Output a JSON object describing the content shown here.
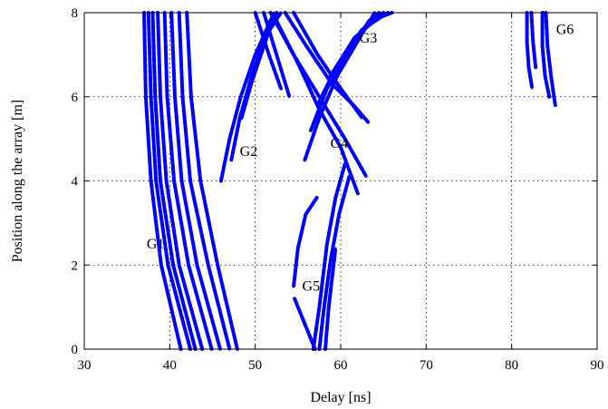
{
  "chart_data": {
    "type": "scatter",
    "title": "",
    "xlabel": "Delay [ns]",
    "ylabel": "Position along the array [m]",
    "xlim": [
      30,
      90
    ],
    "ylim": [
      0,
      8
    ],
    "xticks": [
      30,
      40,
      50,
      60,
      70,
      80,
      90
    ],
    "yticks": [
      0,
      2,
      4,
      6,
      8
    ],
    "grid": true,
    "color": "#0000ff",
    "groups": [
      {
        "name": "G1",
        "label_pos": [
          37.3,
          2.5
        ],
        "traces": [
          [
            [
              37.0,
              8.0
            ],
            [
              37.2,
              6.0
            ],
            [
              37.8,
              4.0
            ],
            [
              39.0,
              2.0
            ],
            [
              41.3,
              0.0
            ]
          ],
          [
            [
              37.5,
              8.0
            ],
            [
              37.8,
              6.0
            ],
            [
              38.4,
              4.0
            ],
            [
              39.8,
              2.0
            ],
            [
              42.4,
              0.0
            ]
          ],
          [
            [
              38.0,
              8.0
            ],
            [
              38.3,
              6.0
            ],
            [
              38.9,
              4.0
            ],
            [
              40.4,
              2.0
            ],
            [
              43.0,
              0.0
            ]
          ],
          [
            [
              38.6,
              8.0
            ],
            [
              38.9,
              6.0
            ],
            [
              39.6,
              4.0
            ],
            [
              41.1,
              2.0
            ],
            [
              43.8,
              0.0
            ]
          ],
          [
            [
              39.4,
              8.0
            ],
            [
              39.7,
              6.0
            ],
            [
              40.5,
              4.0
            ],
            [
              42.2,
              2.0
            ],
            [
              44.9,
              0.0
            ]
          ],
          [
            [
              40.2,
              8.0
            ],
            [
              40.6,
              6.0
            ],
            [
              41.4,
              4.0
            ],
            [
              43.2,
              2.0
            ],
            [
              45.9,
              0.0
            ]
          ],
          [
            [
              41.1,
              8.0
            ],
            [
              41.5,
              6.0
            ],
            [
              42.4,
              4.0
            ],
            [
              44.5,
              2.0
            ],
            [
              47.0,
              0.0
            ]
          ],
          [
            [
              42.0,
              8.0
            ],
            [
              42.5,
              6.0
            ],
            [
              43.6,
              4.0
            ],
            [
              45.6,
              2.0
            ],
            [
              47.9,
              0.0
            ]
          ]
        ]
      },
      {
        "name": "G2",
        "label_pos": [
          48.2,
          4.7
        ],
        "traces": [
          [
            [
              46.0,
              4.0
            ],
            [
              47.0,
              5.0
            ],
            [
              48.3,
              6.0
            ],
            [
              50.0,
              7.0
            ],
            [
              52.2,
              8.0
            ]
          ],
          [
            [
              47.2,
              4.5
            ],
            [
              48.2,
              5.5
            ],
            [
              49.6,
              6.5
            ],
            [
              51.3,
              7.5
            ],
            [
              52.5,
              8.0
            ]
          ],
          [
            [
              48.4,
              5.5
            ],
            [
              49.8,
              6.5
            ],
            [
              51.4,
              7.5
            ],
            [
              53.0,
              8.0
            ]
          ],
          [
            [
              49.5,
              6.3
            ],
            [
              51.0,
              7.2
            ],
            [
              52.0,
              7.8
            ]
          ],
          [
            [
              50.0,
              8.0
            ],
            [
              51.6,
              7.0
            ],
            [
              53.0,
              6.2
            ]
          ],
          [
            [
              51.0,
              8.0
            ],
            [
              52.2,
              7.2
            ],
            [
              54.0,
              6.0
            ]
          ]
        ]
      },
      {
        "name": "G3",
        "label_pos": [
          62.2,
          7.4
        ],
        "traces": [
          [
            [
              55.8,
              4.5
            ],
            [
              57.5,
              5.5
            ],
            [
              59.6,
              6.5
            ],
            [
              62.5,
              7.5
            ],
            [
              64.0,
              8.0
            ]
          ],
          [
            [
              56.5,
              5.2
            ],
            [
              58.4,
              6.2
            ],
            [
              60.8,
              7.0
            ],
            [
              63.3,
              7.8
            ],
            [
              64.5,
              8.0
            ]
          ],
          [
            [
              57.3,
              5.8
            ],
            [
              59.2,
              6.6
            ],
            [
              61.6,
              7.4
            ],
            [
              65.0,
              8.0
            ]
          ],
          [
            [
              58.0,
              6.1
            ],
            [
              60.1,
              6.9
            ],
            [
              62.5,
              7.6
            ],
            [
              65.5,
              8.0
            ]
          ],
          [
            [
              58.8,
              6.5
            ],
            [
              61.0,
              7.2
            ],
            [
              63.4,
              7.8
            ],
            [
              66.0,
              8.0
            ]
          ]
        ]
      },
      {
        "name": "G4",
        "label_pos": [
          58.8,
          4.9
        ],
        "traces": [
          [
            [
              51.8,
              8.0
            ],
            [
              54.5,
              7.0
            ],
            [
              57.5,
              6.0
            ],
            [
              60.5,
              5.0
            ],
            [
              63.0,
              4.1
            ]
          ],
          [
            [
              52.5,
              7.8
            ],
            [
              55.0,
              6.8
            ],
            [
              57.5,
              5.7
            ],
            [
              60.0,
              4.8
            ],
            [
              62.0,
              3.7
            ]
          ],
          [
            [
              53.5,
              8.0
            ],
            [
              56.0,
              7.2
            ],
            [
              59.0,
              6.3
            ],
            [
              61.5,
              5.8
            ],
            [
              63.2,
              5.4
            ]
          ],
          [
            [
              54.5,
              8.0
            ],
            [
              57.3,
              7.0
            ],
            [
              60.0,
              6.2
            ],
            [
              62.5,
              5.5
            ]
          ]
        ]
      },
      {
        "name": "G5",
        "label_pos": [
          55.5,
          1.5
        ],
        "traces": [
          [
            [
              54.5,
              1.5
            ],
            [
              55.0,
              2.4
            ],
            [
              55.9,
              3.2
            ],
            [
              57.2,
              3.6
            ]
          ],
          [
            [
              54.6,
              1.2
            ],
            [
              55.8,
              0.6
            ],
            [
              57.0,
              0.0
            ]
          ],
          [
            [
              56.8,
              0.0
            ],
            [
              57.5,
              1.0
            ],
            [
              58.4,
              2.5
            ],
            [
              59.4,
              3.6
            ],
            [
              60.5,
              4.4
            ]
          ],
          [
            [
              57.5,
              0.0
            ],
            [
              58.0,
              0.9
            ],
            [
              58.8,
              2.1
            ],
            [
              59.8,
              3.2
            ],
            [
              61.0,
              4.1
            ]
          ],
          [
            [
              58.2,
              0.0
            ],
            [
              58.6,
              1.0
            ],
            [
              59.4,
              2.4
            ]
          ]
        ]
      },
      {
        "name": "G6",
        "label_pos": [
          85.2,
          7.6
        ],
        "traces": [
          [
            [
              81.8,
              8.0
            ],
            [
              81.8,
              7.3
            ],
            [
              82.0,
              6.7
            ],
            [
              82.4,
              6.2
            ]
          ],
          [
            [
              82.3,
              8.0
            ],
            [
              82.5,
              7.3
            ],
            [
              82.8,
              6.7
            ]
          ],
          [
            [
              83.6,
              8.0
            ],
            [
              83.6,
              7.2
            ],
            [
              83.9,
              6.5
            ],
            [
              84.4,
              6.0
            ]
          ],
          [
            [
              84.0,
              8.0
            ],
            [
              84.2,
              7.2
            ],
            [
              84.6,
              6.5
            ],
            [
              85.1,
              5.8
            ]
          ]
        ]
      }
    ]
  }
}
